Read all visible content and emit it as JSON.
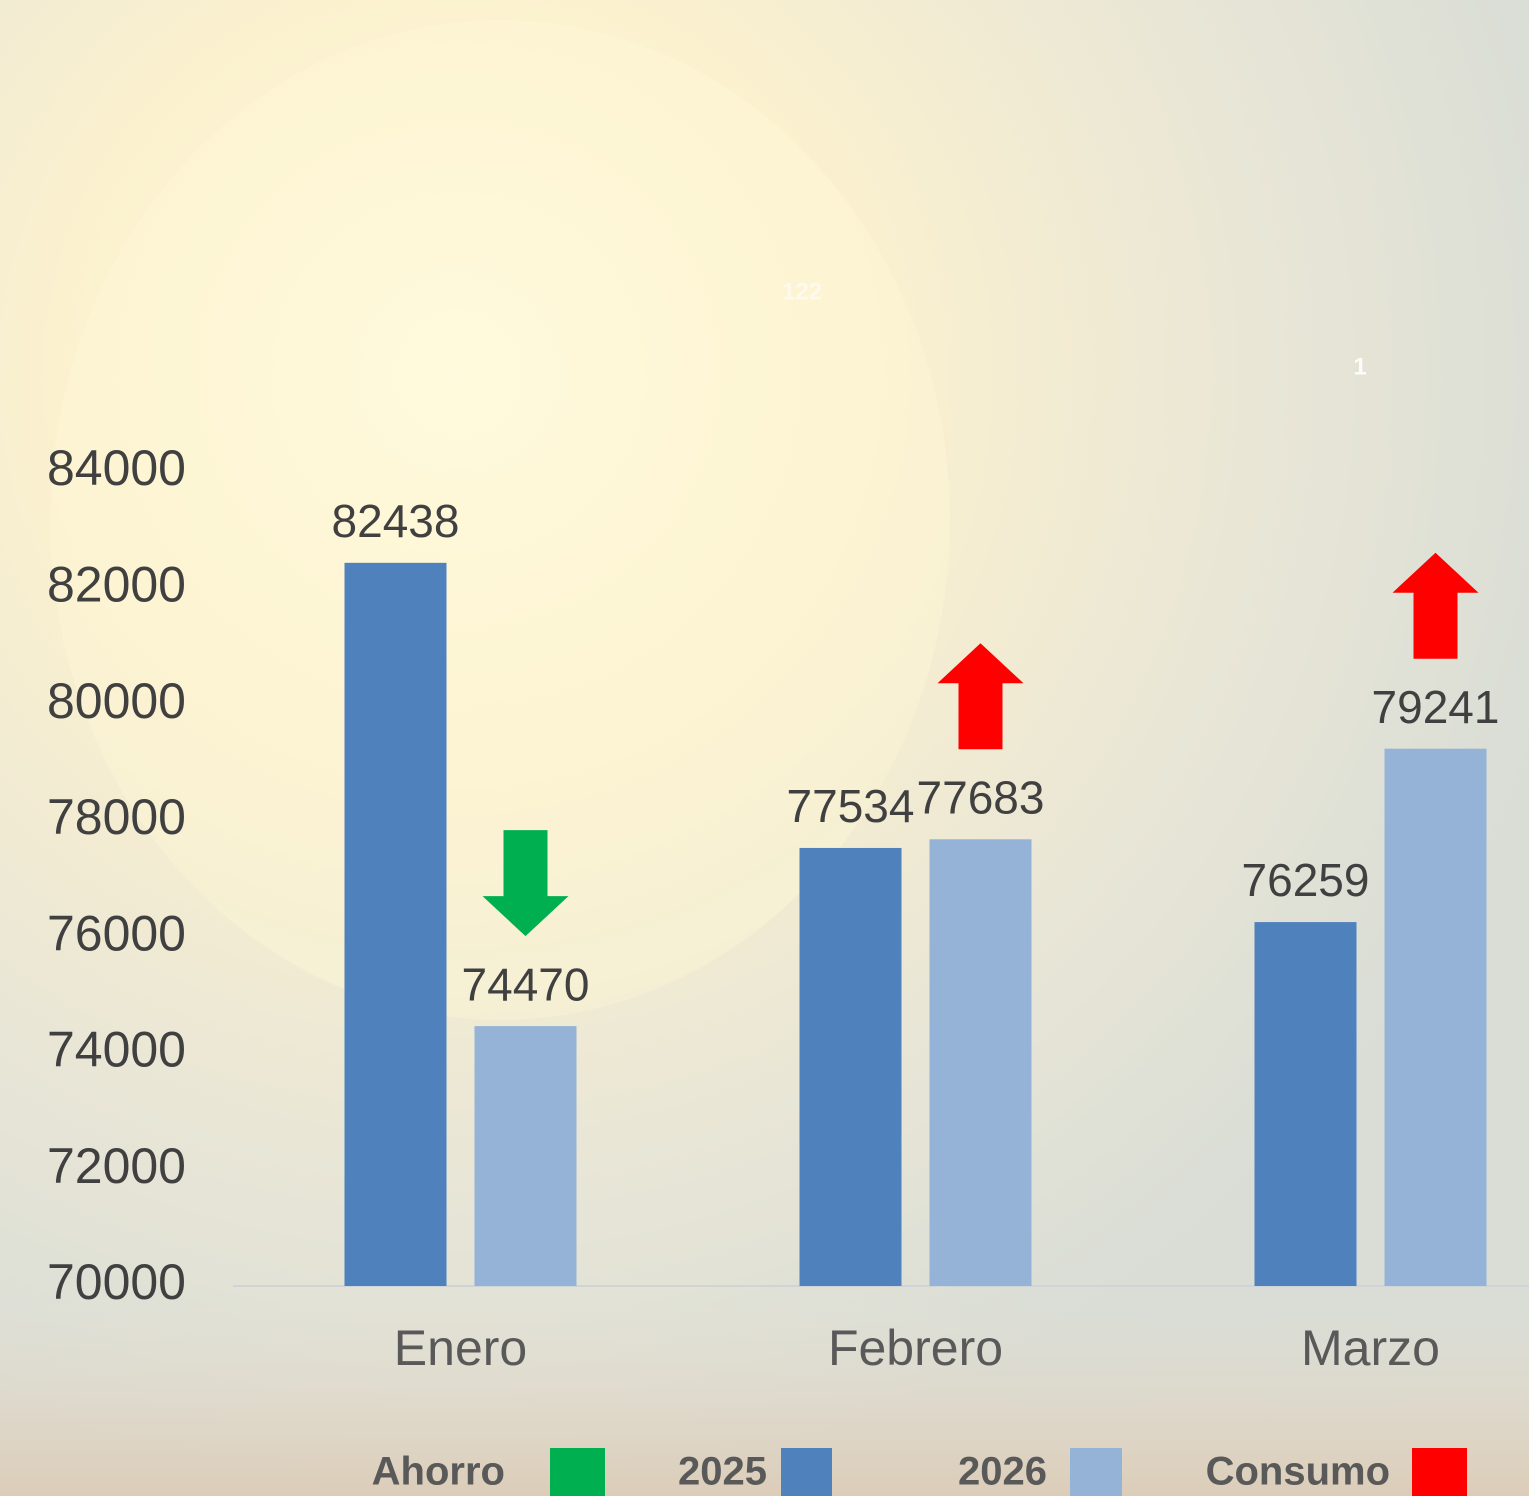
{
  "chart_data": {
    "type": "bar",
    "categories": [
      "Enero",
      "Febrero",
      "Marzo"
    ],
    "series": [
      {
        "name": "2025",
        "color": "#4f81bd",
        "values": [
          82438,
          77534,
          76259
        ]
      },
      {
        "name": "2026",
        "color": "#95b3d7",
        "values": [
          74470,
          77683,
          79241
        ]
      }
    ],
    "ylim": [
      70000,
      84000
    ],
    "yticks": [
      70000,
      72000,
      74000,
      76000,
      78000,
      80000,
      82000,
      84000
    ],
    "grid": false,
    "indicators": [
      {
        "name": "Ahorro",
        "color": "#00b050",
        "direction": "down"
      },
      {
        "name": "Consumo",
        "color": "#ff0000",
        "direction": "up"
      }
    ],
    "annotations": [
      "122",
      "1"
    ]
  }
}
